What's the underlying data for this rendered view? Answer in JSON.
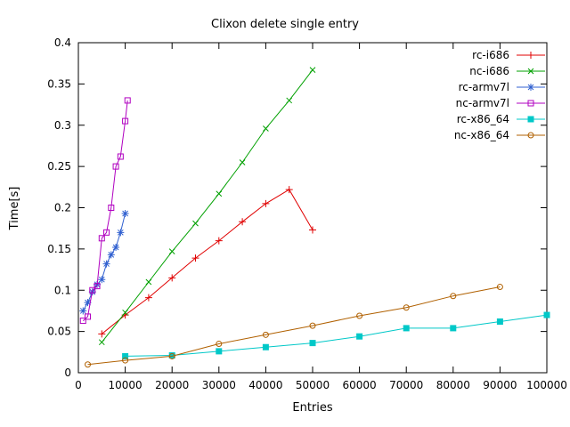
{
  "chart_data": {
    "type": "line",
    "title": "Clixon delete single entry",
    "xlabel": "Entries",
    "ylabel": "Time[s]",
    "xlim": [
      0,
      100000
    ],
    "ylim": [
      0,
      0.4
    ],
    "grid": false,
    "legend_position": "top-right-inside",
    "xticks": [
      0,
      10000,
      20000,
      30000,
      40000,
      50000,
      60000,
      70000,
      80000,
      90000,
      100000
    ],
    "xtick_labels": [
      "0",
      "10000",
      "20000",
      "30000",
      "40000",
      "50000",
      "60000",
      "70000",
      "80000",
      "90000",
      "100000"
    ],
    "yticks": [
      0,
      0.05,
      0.1,
      0.15,
      0.2,
      0.25,
      0.3,
      0.35,
      0.4
    ],
    "ytick_labels": [
      "0",
      "0.05",
      "0.1",
      "0.15",
      "0.2",
      "0.25",
      "0.3",
      "0.35",
      "0.4"
    ],
    "series": [
      {
        "name": "rc-i686",
        "color": "#e00000",
        "marker": "plus",
        "x": [
          5000,
          10000,
          15000,
          20000,
          25000,
          30000,
          35000,
          40000,
          45000,
          50000
        ],
        "y": [
          0.047,
          0.07,
          0.091,
          0.115,
          0.139,
          0.16,
          0.183,
          0.205,
          0.222,
          0.173
        ]
      },
      {
        "name": "nc-i686",
        "color": "#00a000",
        "marker": "cross",
        "x": [
          5000,
          10000,
          15000,
          20000,
          25000,
          30000,
          35000,
          40000,
          45000,
          50000
        ],
        "y": [
          0.037,
          0.073,
          0.11,
          0.147,
          0.181,
          0.217,
          0.255,
          0.296,
          0.33,
          0.367
        ]
      },
      {
        "name": "rc-armv7l",
        "color": "#3060d0",
        "marker": "asterisk",
        "x": [
          1000,
          2000,
          3000,
          4000,
          5000,
          6000,
          7000,
          8000,
          9000,
          10000
        ],
        "y": [
          0.075,
          0.085,
          0.098,
          0.107,
          0.113,
          0.132,
          0.143,
          0.152,
          0.17,
          0.193
        ]
      },
      {
        "name": "nc-armv7l",
        "color": "#b000c0",
        "marker": "square-open",
        "x": [
          1000,
          2000,
          3000,
          4000,
          5000,
          6000,
          7000,
          8000,
          9000,
          10000,
          10500
        ],
        "y": [
          0.063,
          0.068,
          0.1,
          0.105,
          0.163,
          0.17,
          0.2,
          0.25,
          0.262,
          0.305,
          0.33
        ]
      },
      {
        "name": "rc-x86_64",
        "color": "#00c8c8",
        "marker": "square-filled",
        "x": [
          10000,
          20000,
          30000,
          40000,
          50000,
          60000,
          70000,
          80000,
          90000,
          100000
        ],
        "y": [
          0.02,
          0.021,
          0.026,
          0.031,
          0.036,
          0.044,
          0.054,
          0.054,
          0.062,
          0.07
        ]
      },
      {
        "name": "nc-x86_64",
        "color": "#b06000",
        "marker": "circle-open",
        "x": [
          2000,
          10000,
          20000,
          30000,
          40000,
          50000,
          60000,
          70000,
          80000,
          90000
        ],
        "y": [
          0.01,
          0.015,
          0.02,
          0.035,
          0.046,
          0.057,
          0.069,
          0.079,
          0.093,
          0.104
        ]
      }
    ]
  }
}
